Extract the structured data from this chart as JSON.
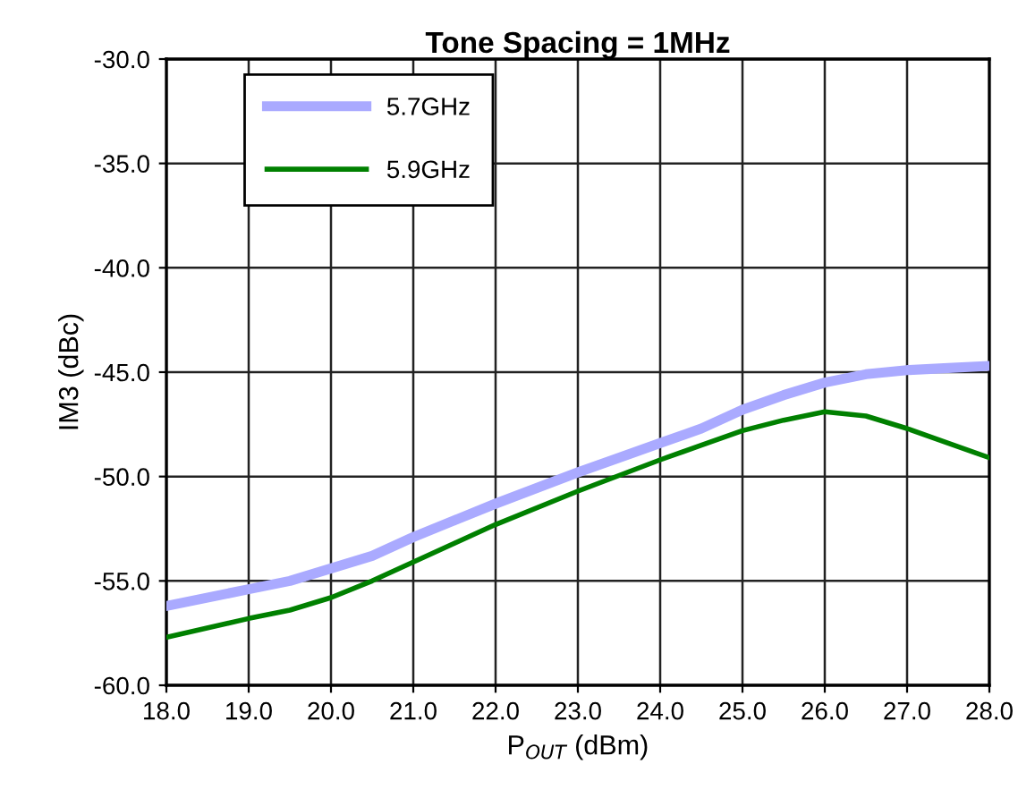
{
  "chart_data": {
    "type": "line",
    "title": "Tone Spacing = 1MHz",
    "xlabel": "P$_{OUT}$ (dBm)",
    "ylabel": "IM3 (dBc)",
    "xlim": [
      18,
      28
    ],
    "ylim": [
      -60,
      -30
    ],
    "xticks": [
      {
        "value": 18,
        "label": "18.0"
      },
      {
        "value": 19,
        "label": "19.0"
      },
      {
        "value": 20,
        "label": "20.0"
      },
      {
        "value": 21,
        "label": "21.0"
      },
      {
        "value": 22,
        "label": "22.0"
      },
      {
        "value": 23,
        "label": "23.0"
      },
      {
        "value": 24,
        "label": "24.0"
      },
      {
        "value": 25,
        "label": "25.0"
      },
      {
        "value": 26,
        "label": "26.0"
      },
      {
        "value": 27,
        "label": "27.0"
      },
      {
        "value": 28,
        "label": "28.0"
      }
    ],
    "yticks": [
      {
        "value": -60,
        "label": "-60.0"
      },
      {
        "value": -55,
        "label": "-55.0"
      },
      {
        "value": -50,
        "label": "-50.0"
      },
      {
        "value": -45,
        "label": "-45.0"
      },
      {
        "value": -40,
        "label": "-40.0"
      },
      {
        "value": -35,
        "label": "-35.0"
      },
      {
        "value": -30,
        "label": "-30.0"
      }
    ],
    "grid": true,
    "legend": "top left",
    "marker": "none",
    "line_style": "solid",
    "x": [
      18,
      19,
      19.5,
      20,
      20.5,
      21,
      21.5,
      22,
      23,
      24,
      24.5,
      25,
      25.5,
      26,
      26.5,
      27,
      27.5,
      28
    ],
    "series": [
      {
        "name": "5.7GHz",
        "color": "#aaaaff",
        "values": [
          -56.2,
          -55.4,
          -55.0,
          -54.4,
          -53.8,
          -52.9,
          -52.1,
          -51.3,
          -49.8,
          -48.4,
          -47.7,
          -46.8,
          -46.1,
          -45.5,
          -45.1,
          -44.9,
          -44.8,
          -44.7
        ]
      },
      {
        "name": "5.9GHz",
        "color": "#008000",
        "values": [
          -57.7,
          -56.8,
          -56.4,
          -55.8,
          -55.0,
          -54.1,
          -53.2,
          -52.3,
          -50.7,
          -49.2,
          -48.5,
          -47.8,
          -47.3,
          -46.9,
          -47.1,
          -47.7,
          -48.4,
          -49.1
        ]
      }
    ]
  }
}
